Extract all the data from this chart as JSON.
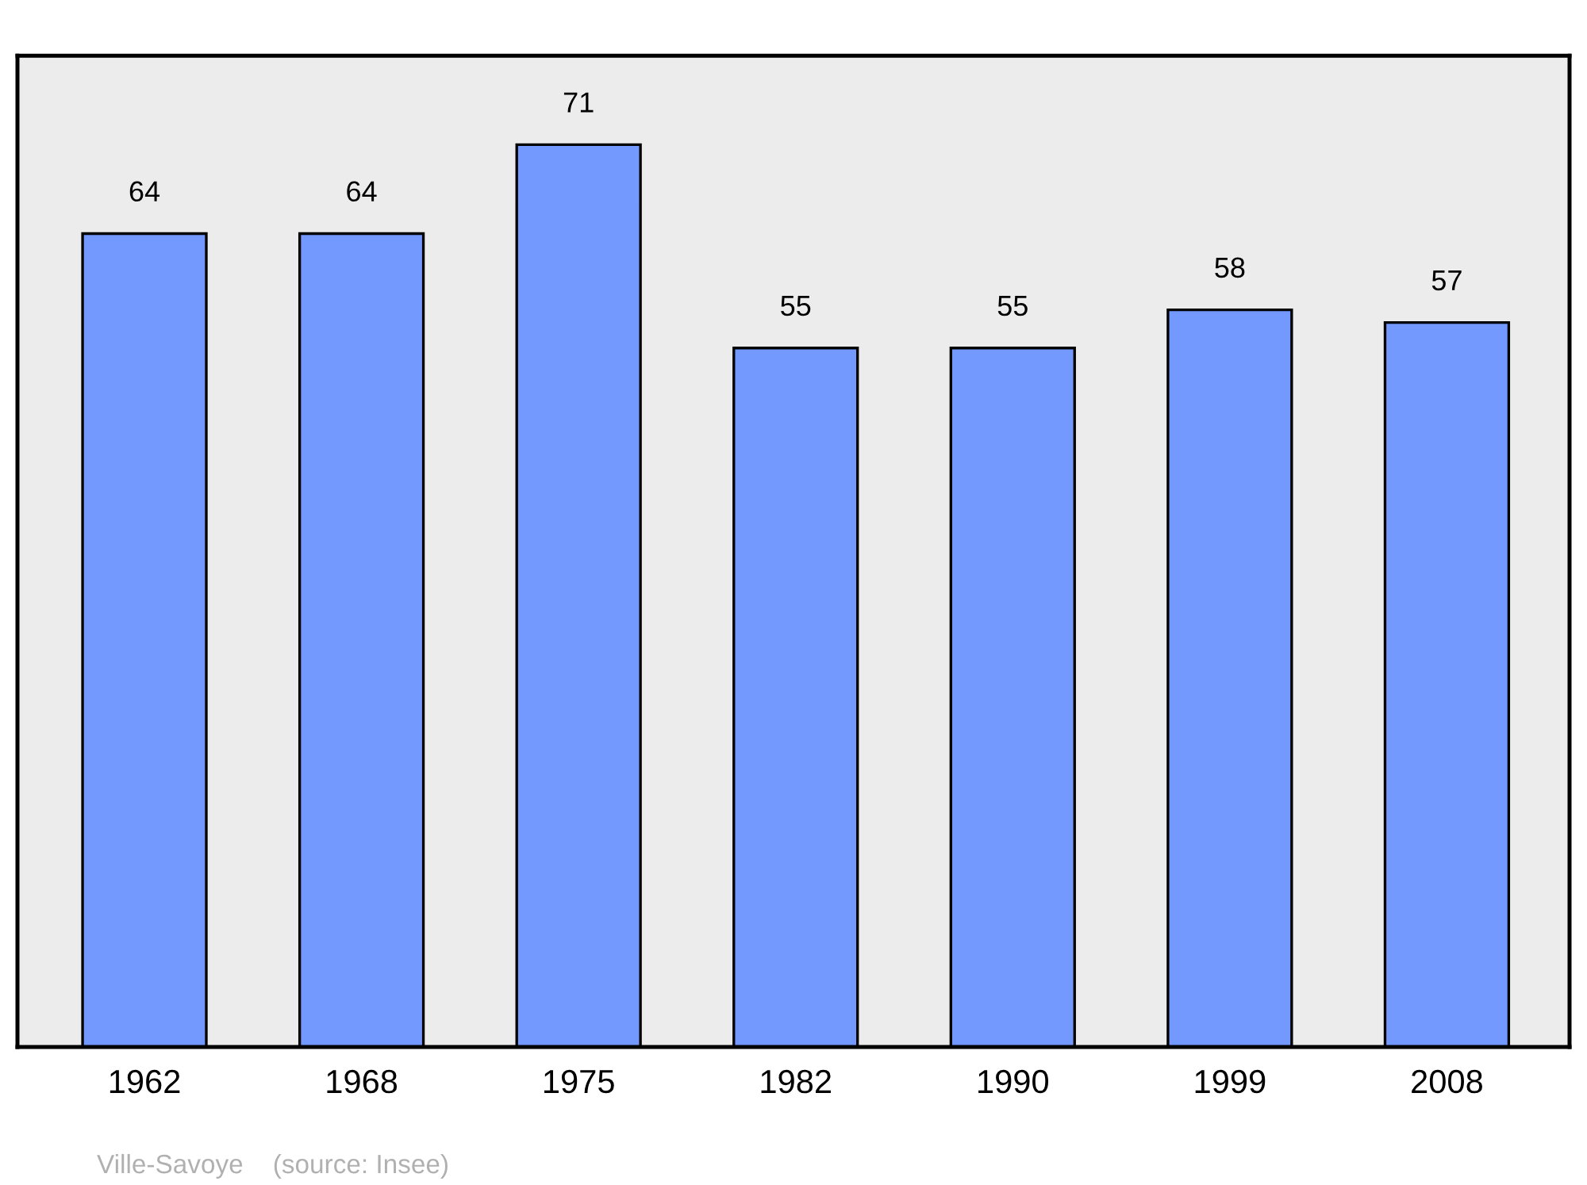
{
  "chart_data": {
    "type": "bar",
    "categories": [
      "1962",
      "1968",
      "1975",
      "1982",
      "1990",
      "1999",
      "2008"
    ],
    "values": [
      64,
      64,
      71,
      55,
      55,
      58,
      57
    ],
    "color": "#7399ff",
    "ylim": [
      0,
      78
    ],
    "data_labels": true,
    "grid": false,
    "legend": false,
    "tick_labels": "x",
    "annotations": [
      "Ville-Savoye    (source: Insee)"
    ]
  }
}
